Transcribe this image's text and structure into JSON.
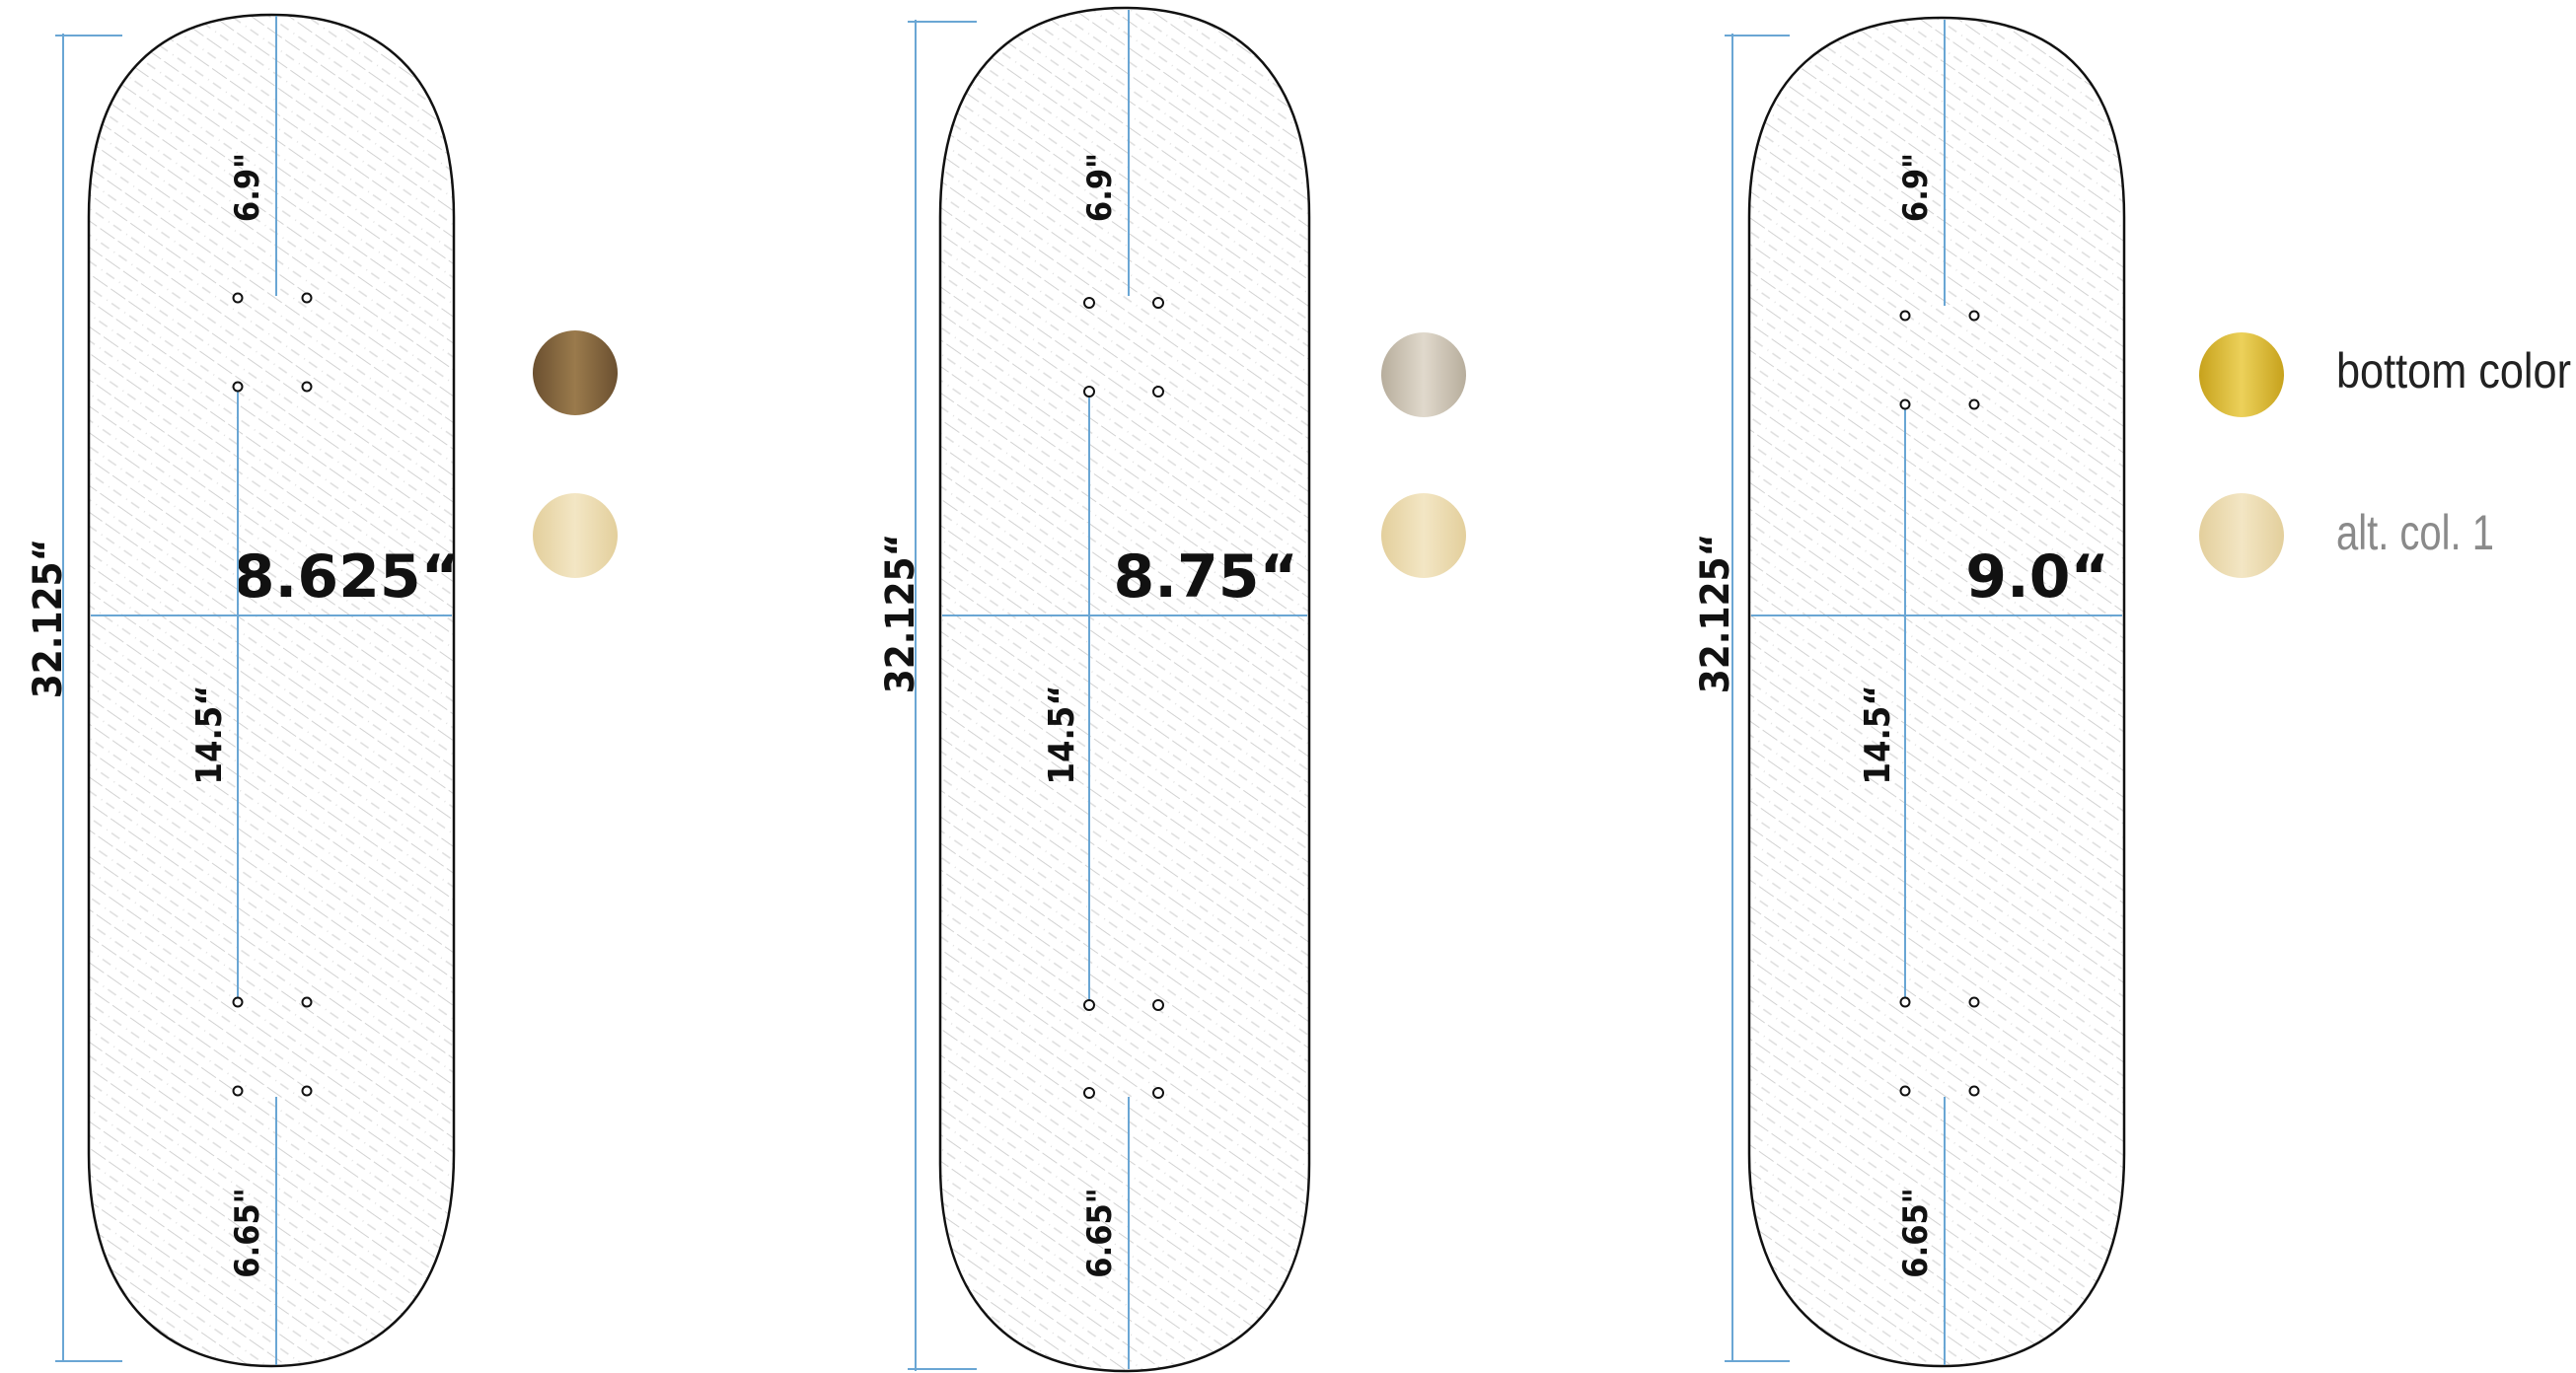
{
  "boards": [
    {
      "length_label": "32.125“",
      "width_label": "8.625“",
      "nose_label": "6.9\"",
      "wheelbase_label": "14.5“",
      "tail_label": "6.65\"",
      "swatches": [
        {
          "color_dark": "#6b5030",
          "color_light": "#9a7a4c"
        },
        {
          "color_dark": "#e3cf9c",
          "color_light": "#f3e6c4"
        }
      ]
    },
    {
      "length_label": "32.125“",
      "width_label": "8.75“",
      "nose_label": "6.9\"",
      "wheelbase_label": "14.5“",
      "tail_label": "6.65\"",
      "swatches": [
        {
          "color_dark": "#b7ad9c",
          "color_light": "#e0d9cc"
        },
        {
          "color_dark": "#e3cf9c",
          "color_light": "#f3e6c4"
        }
      ]
    },
    {
      "length_label": "32.125“",
      "width_label": "9.0“",
      "nose_label": "6.9\"",
      "wheelbase_label": "14.5“",
      "tail_label": "6.65\"",
      "swatches": [
        {
          "color_dark": "#c7a21c",
          "color_light": "#ecd15a"
        },
        {
          "color_dark": "#e3cf9c",
          "color_light": "#f3e6c4"
        }
      ]
    }
  ],
  "legend": {
    "bottom_label": "bottom color",
    "alt_label": "alt. col. 1"
  },
  "colors": {
    "measure_line": "#6aa6d4",
    "outline": "#111111",
    "hatch": "#d4d4d4",
    "legend_bottom_text": "#222222",
    "legend_alt_text": "#8a8a8a"
  }
}
